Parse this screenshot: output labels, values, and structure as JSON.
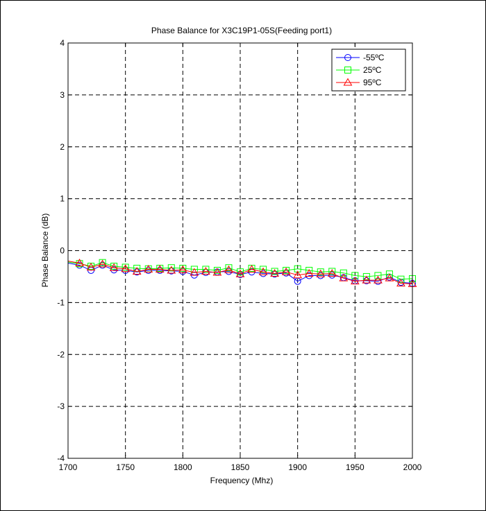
{
  "chart_data": {
    "type": "line",
    "title": "Phase Balance for X3C19P1-05S(Feeding port1)",
    "xlabel": "Frequency (Mhz)",
    "ylabel": "Phase Balance (dB)",
    "xlim": [
      1700,
      2000
    ],
    "ylim": [
      -4,
      4
    ],
    "xticks": [
      1700,
      1750,
      1800,
      1850,
      1900,
      1950,
      2000
    ],
    "yticks": [
      -4,
      -3,
      -2,
      -1,
      0,
      1,
      2,
      3,
      4
    ],
    "grid": true,
    "legend_position": "top-right",
    "x": [
      1700,
      1710,
      1720,
      1730,
      1740,
      1750,
      1760,
      1770,
      1780,
      1790,
      1800,
      1810,
      1820,
      1830,
      1840,
      1850,
      1860,
      1870,
      1880,
      1890,
      1900,
      1910,
      1920,
      1930,
      1940,
      1950,
      1960,
      1970,
      1980,
      1990,
      2000
    ],
    "marker_start_index": 1,
    "series": [
      {
        "name": "-55ºC",
        "color": "#0000ff",
        "marker": "circle",
        "values": [
          -0.24,
          -0.28,
          -0.38,
          -0.28,
          -0.37,
          -0.38,
          -0.41,
          -0.38,
          -0.38,
          -0.39,
          -0.4,
          -0.47,
          -0.42,
          -0.41,
          -0.4,
          -0.46,
          -0.41,
          -0.44,
          -0.45,
          -0.43,
          -0.59,
          -0.48,
          -0.48,
          -0.47,
          -0.52,
          -0.58,
          -0.58,
          -0.59,
          -0.51,
          -0.61,
          -0.63
        ]
      },
      {
        "name": "25ºC",
        "color": "#00ff00",
        "marker": "square",
        "values": [
          -0.22,
          -0.25,
          -0.3,
          -0.23,
          -0.3,
          -0.32,
          -0.34,
          -0.35,
          -0.34,
          -0.33,
          -0.34,
          -0.36,
          -0.36,
          -0.38,
          -0.33,
          -0.41,
          -0.34,
          -0.36,
          -0.4,
          -0.38,
          -0.35,
          -0.38,
          -0.41,
          -0.4,
          -0.43,
          -0.48,
          -0.5,
          -0.48,
          -0.45,
          -0.55,
          -0.54
        ]
      },
      {
        "name": "95ºC",
        "color": "#ff0000",
        "marker": "triangle",
        "values": [
          -0.2,
          -0.24,
          -0.32,
          -0.26,
          -0.33,
          -0.35,
          -0.4,
          -0.36,
          -0.36,
          -0.38,
          -0.37,
          -0.42,
          -0.4,
          -0.42,
          -0.37,
          -0.45,
          -0.36,
          -0.41,
          -0.44,
          -0.41,
          -0.47,
          -0.44,
          -0.45,
          -0.44,
          -0.53,
          -0.59,
          -0.57,
          -0.57,
          -0.53,
          -0.63,
          -0.64
        ]
      }
    ]
  }
}
